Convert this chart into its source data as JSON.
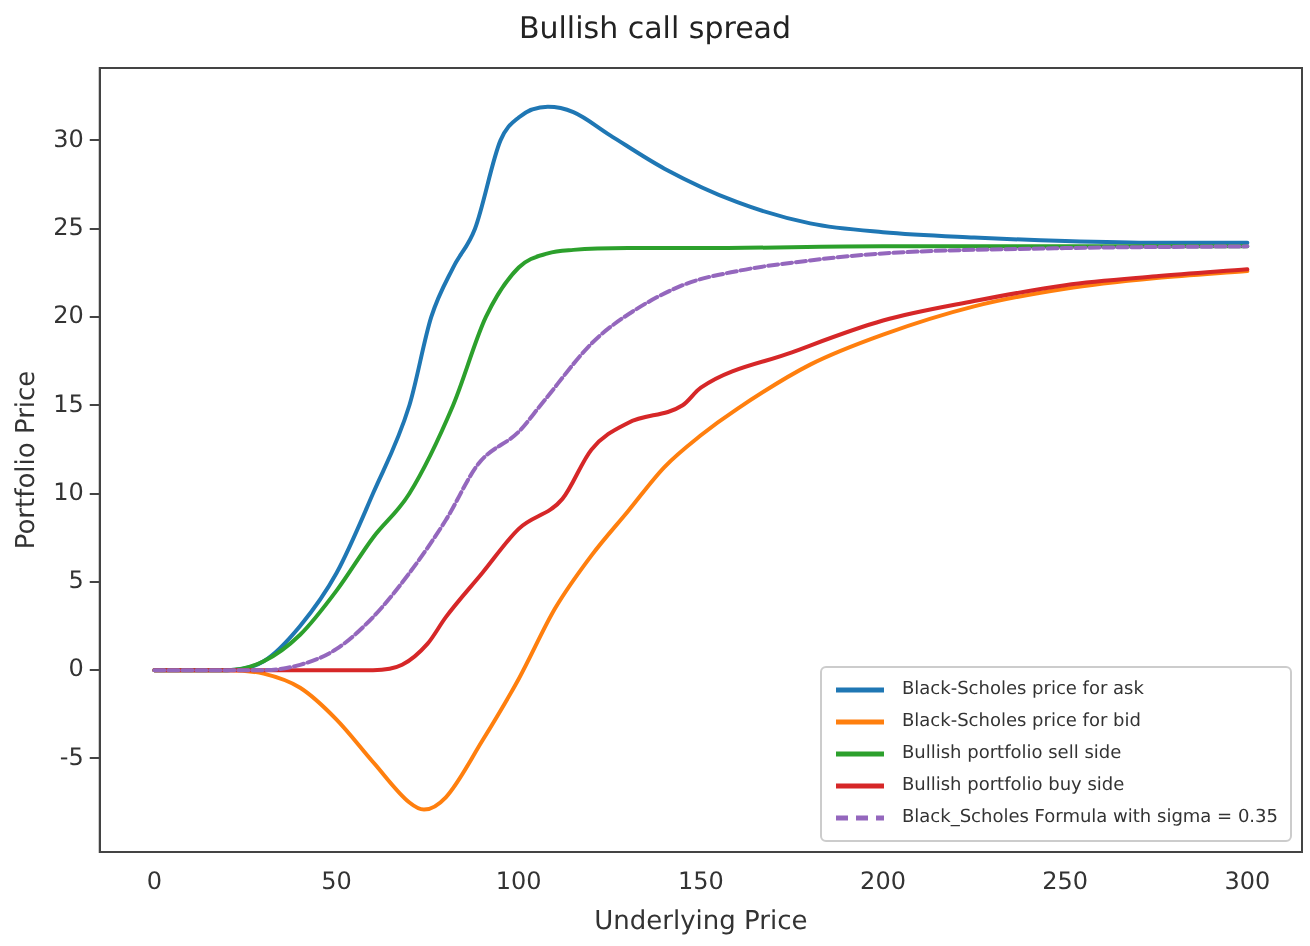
{
  "chart_data": {
    "type": "line",
    "title": "Bullish call spread",
    "xlabel": "Underlying Price",
    "ylabel": "Portfolio Price",
    "xlim": [
      -15,
      315
    ],
    "ylim": [
      -10.3,
      34.1
    ],
    "xticks": [
      0,
      50,
      100,
      150,
      200,
      250,
      300
    ],
    "yticks": [
      -5,
      0,
      5,
      10,
      15,
      20,
      25,
      30
    ],
    "legend": "bottom right",
    "marker": "none",
    "series": [
      {
        "name": "Black-Scholes price for ask",
        "color": "#1f77b4",
        "x": [
          0,
          20,
          30,
          40,
          50,
          60,
          70,
          76,
          82,
          88,
          95,
          100,
          108,
          115,
          125,
          140,
          160,
          180,
          200,
          225,
          250,
          275,
          300
        ],
        "values": [
          0,
          0,
          0.5,
          2.5,
          5.5,
          10,
          15,
          20,
          22.8,
          25,
          30,
          31.3,
          31.9,
          31.6,
          30.3,
          28.4,
          26.5,
          25.3,
          24.8,
          24.5,
          24.3,
          24.2,
          24.2
        ]
      },
      {
        "name": "Black-Scholes price for bid",
        "color": "#ff7f0e",
        "x": [
          0,
          20,
          30,
          40,
          50,
          60,
          70,
          74,
          80,
          90,
          100,
          110,
          120,
          130,
          140,
          150,
          160,
          180,
          200,
          225,
          250,
          275,
          300
        ],
        "values": [
          0,
          0,
          -0.2,
          -1,
          -2.8,
          -5.2,
          -7.5,
          -7.9,
          -7.2,
          -4,
          -0.5,
          3.5,
          6.5,
          9,
          11.5,
          13.3,
          14.8,
          17.3,
          19,
          20.6,
          21.6,
          22.2,
          22.6
        ]
      },
      {
        "name": "Bullish portfolio sell side",
        "color": "#2ca02c",
        "x": [
          0,
          20,
          30,
          40,
          50,
          60,
          70,
          82,
          91,
          100,
          108,
          115,
          130,
          150,
          200,
          250,
          300
        ],
        "values": [
          0,
          0,
          0.5,
          2,
          4.5,
          7.5,
          10,
          15,
          20,
          22.8,
          23.6,
          23.8,
          23.9,
          23.9,
          24,
          24,
          24
        ]
      },
      {
        "name": "Bullish portfolio buy side",
        "color": "#d62728",
        "x": [
          0,
          60,
          68,
          75,
          80,
          90,
          100,
          112,
          120,
          130,
          145,
          150,
          175,
          200,
          225,
          250,
          275,
          300
        ],
        "values": [
          0,
          0,
          0.3,
          1.5,
          3,
          5.5,
          8,
          9.7,
          12.5,
          14,
          15,
          16,
          18,
          19.8,
          20.9,
          21.8,
          22.3,
          22.7
        ]
      },
      {
        "name": "Black_Scholes Formula with sigma = 0.35",
        "color": "#9467bd",
        "line_style": "dashed",
        "x": [
          0,
          30,
          40,
          50,
          60,
          70,
          80,
          89,
          100,
          106,
          120,
          129,
          145,
          160,
          180,
          200,
          250,
          300
        ],
        "values": [
          0,
          0,
          0.3,
          1.2,
          3,
          5.5,
          8.5,
          11.7,
          13.5,
          15,
          18.5,
          20,
          21.8,
          22.6,
          23.2,
          23.6,
          23.9,
          24
        ]
      }
    ]
  }
}
